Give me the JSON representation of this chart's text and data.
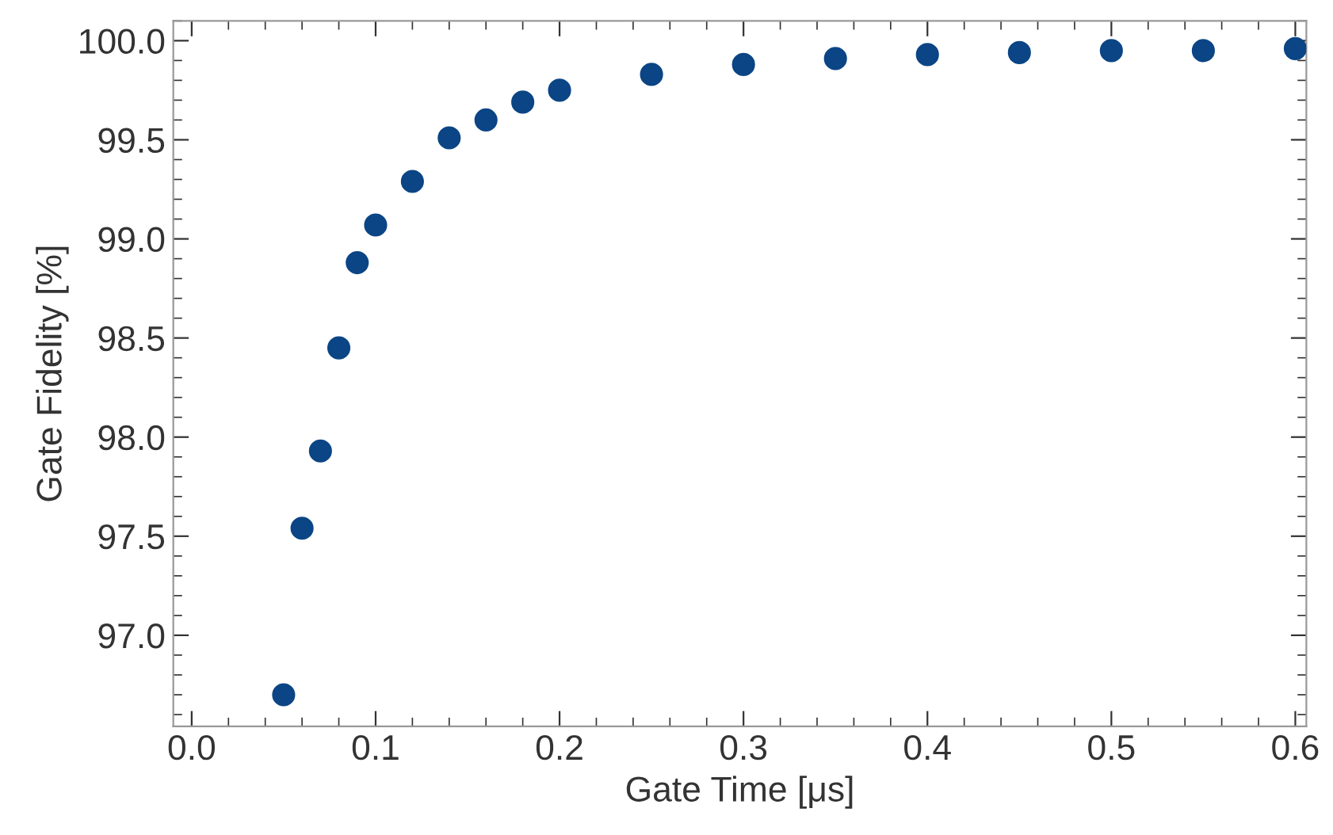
{
  "chart_data": {
    "type": "scatter",
    "xlabel": "Gate Time [μs]",
    "ylabel": "Gate Fidelity [%]",
    "x": [
      0.05,
      0.06,
      0.07,
      0.08,
      0.09,
      0.1,
      0.12,
      0.14,
      0.16,
      0.18,
      0.2,
      0.25,
      0.3,
      0.35,
      0.4,
      0.45,
      0.5,
      0.55,
      0.6
    ],
    "series": [
      {
        "color": "#0b4585",
        "values": [
          96.7,
          97.54,
          97.93,
          98.45,
          98.88,
          99.07,
          99.29,
          99.51,
          99.6,
          99.69,
          99.75,
          99.83,
          99.88,
          99.91,
          99.93,
          99.94,
          99.95,
          99.95,
          99.96
        ]
      }
    ],
    "xlim": [
      -0.01,
      0.606
    ],
    "ylim": [
      96.54,
      100.1
    ],
    "xticks": [
      {
        "value": 0.0,
        "label": "0.0"
      },
      {
        "value": 0.1,
        "label": "0.1"
      },
      {
        "value": 0.2,
        "label": "0.2"
      },
      {
        "value": 0.3,
        "label": "0.3"
      },
      {
        "value": 0.4,
        "label": "0.4"
      },
      {
        "value": 0.5,
        "label": "0.5"
      },
      {
        "value": 0.6,
        "label": "0.6"
      }
    ],
    "yticks": [
      {
        "value": 97.0,
        "label": "97.0"
      },
      {
        "value": 97.5,
        "label": "97.5"
      },
      {
        "value": 98.0,
        "label": "98.0"
      },
      {
        "value": 98.5,
        "label": "98.5"
      },
      {
        "value": 99.0,
        "label": "99.0"
      },
      {
        "value": 99.5,
        "label": "99.5"
      },
      {
        "value": 100.0,
        "label": "100.0"
      }
    ],
    "marker": "circle",
    "grid": false,
    "legend": false
  }
}
